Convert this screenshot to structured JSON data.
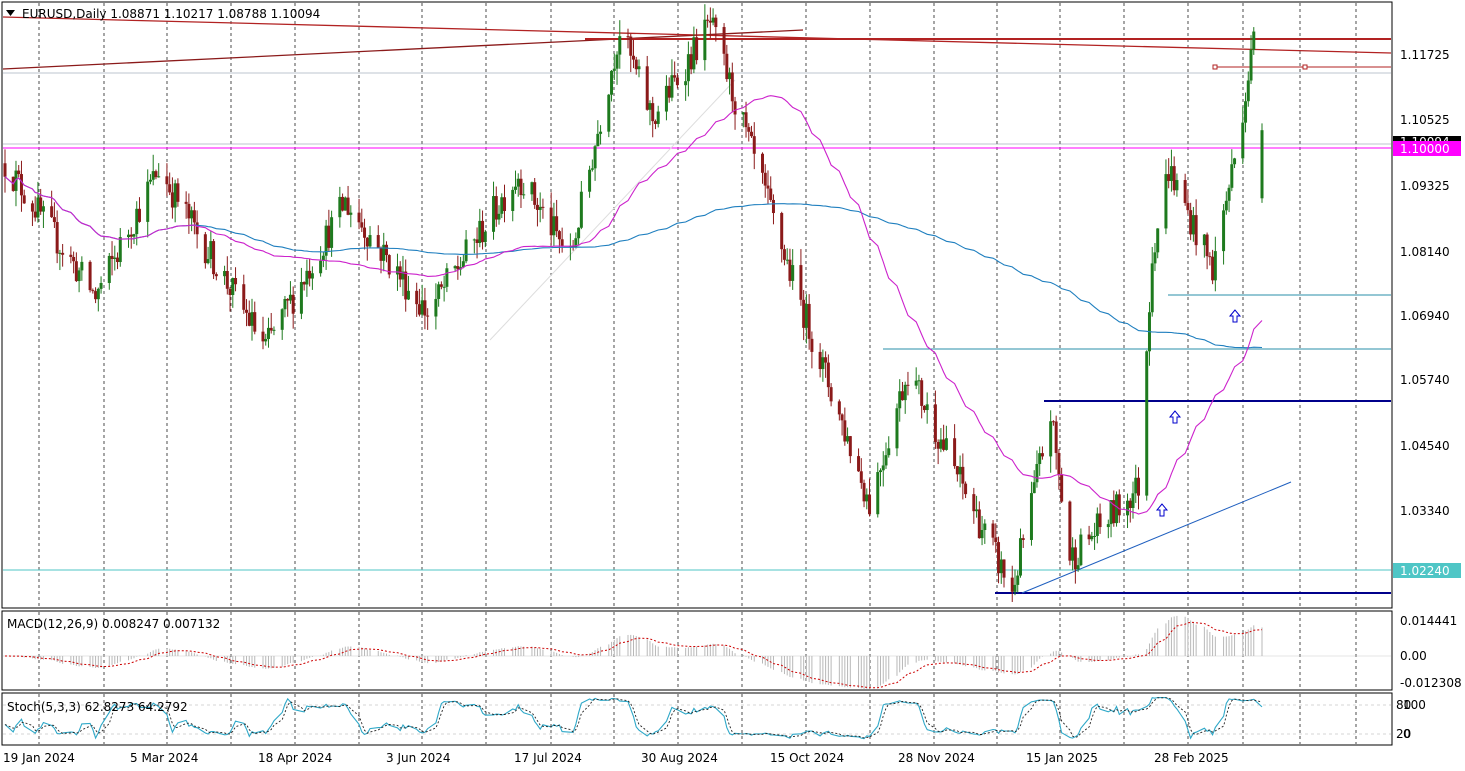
{
  "window": {
    "symbol_line": "EURUSD,Daily  1.08871 1.10217 1.08788 1.10094",
    "menu_icon": "triangle-down-icon"
  },
  "main_axis": {
    "price_labels": [
      "1.11725",
      "1.10525",
      "1.09325",
      "1.08140",
      "1.06940",
      "1.05740",
      "1.04540",
      "1.03340"
    ],
    "price_values": [
      1.11725,
      1.10525,
      1.09325,
      1.0814,
      1.0694,
      1.0574,
      1.0454,
      1.0334
    ],
    "current_price_label": "1.10094",
    "current_price_value": 1.10094,
    "marked_level_1": {
      "label": "1.10000",
      "value": 1.1,
      "color": "#ff00ff"
    },
    "marked_level_2": {
      "label": "1.02240",
      "value": 1.0224,
      "color": "#4fc6c6"
    },
    "ylim": [
      1.0155,
      1.1236
    ]
  },
  "date_labels": [
    "19 Jan 2024",
    "5 Mar 2024",
    "18 Apr 2024",
    "3 Jun 2024",
    "17 Jul 2024",
    "30 Aug 2024",
    "15 Oct 2024",
    "28 Nov 2024",
    "15 Jan 2025",
    "28 Feb 2025"
  ],
  "macd_panel": {
    "title": "MACD(12,26,9) 0.008247 0.007132",
    "labels": [
      "0.014441",
      "0.00",
      "-0.012308"
    ],
    "values": [
      0.014441,
      0.0,
      -0.012308
    ]
  },
  "stoch_panel": {
    "title": "Stoch(5,3,3) 62.8273 64.2792",
    "labels": [
      "80",
      "100",
      "20",
      "0"
    ],
    "values": [
      80,
      100,
      20,
      0
    ]
  },
  "chart_data": {
    "type": "candlestick",
    "symbol": "EURUSD",
    "timeframe": "Daily",
    "last_bar": {
      "open": 1.08871,
      "high": 1.10217,
      "low": 1.08788,
      "close": 1.10094
    },
    "price_path_keypoints": [
      {
        "date": "2024-01-12",
        "close": 1.095
      },
      {
        "date": "2024-02-14",
        "close": 1.071
      },
      {
        "date": "2024-03-08",
        "close": 1.094
      },
      {
        "date": "2024-04-16",
        "close": 1.062
      },
      {
        "date": "2024-05-15",
        "close": 1.088
      },
      {
        "date": "2024-06-14",
        "close": 1.068
      },
      {
        "date": "2024-07-17",
        "close": 1.093
      },
      {
        "date": "2024-08-05",
        "close": 1.078
      },
      {
        "date": "2024-08-23",
        "close": 1.119
      },
      {
        "date": "2024-09-04",
        "close": 1.103
      },
      {
        "date": "2024-09-25",
        "close": 1.12
      },
      {
        "date": "2024-10-23",
        "close": 1.077
      },
      {
        "date": "2024-11-22",
        "close": 1.034
      },
      {
        "date": "2024-12-06",
        "close": 1.058
      },
      {
        "date": "2025-01-13",
        "close": 1.018
      },
      {
        "date": "2025-01-27",
        "close": 1.05
      },
      {
        "date": "2025-02-03",
        "close": 1.024
      },
      {
        "date": "2025-02-28",
        "close": 1.037
      },
      {
        "date": "2025-03-05",
        "close": 1.079
      },
      {
        "date": "2025-03-11",
        "close": 1.094
      },
      {
        "date": "2025-03-27",
        "close": 1.076
      },
      {
        "date": "2025-04-04",
        "close": 1.096
      },
      {
        "date": "2025-04-11",
        "close": 1.117
      },
      {
        "date": "2025-04-14",
        "close": 1.101
      }
    ],
    "colors": {
      "up": "#1e7a1e",
      "down": "#8b1a1a",
      "ma_fast": "#cc22cc",
      "ma_slow": "#1f7fbf",
      "resistance": "#b22222",
      "support": "#00008b",
      "hline": "#2a8fa8"
    }
  }
}
